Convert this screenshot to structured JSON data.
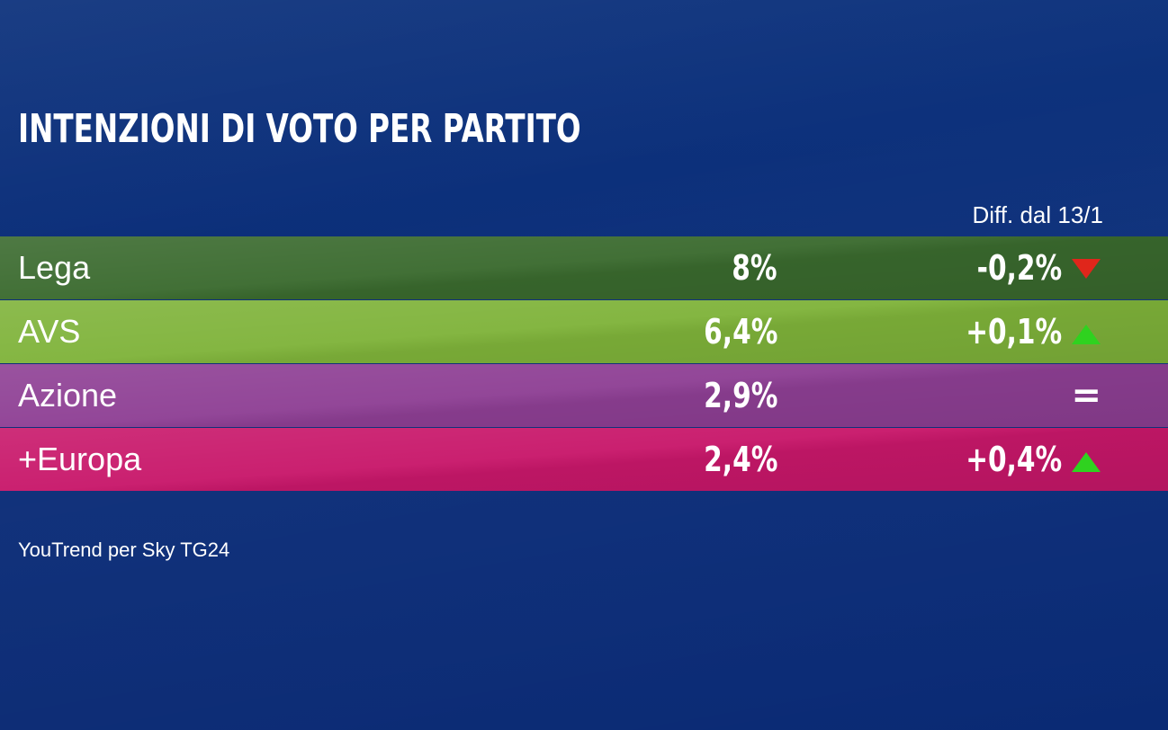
{
  "title": "INTENZIONI DI VOTO PER PARTITO",
  "diff_header": "Diff. dal 13/1",
  "source": "YouTrend per Sky TG24",
  "colors": {
    "background": "#0c2e78",
    "up": "#2fd21f",
    "down": "#e0261b"
  },
  "chart_data": {
    "type": "table",
    "title": "INTENZIONI DI VOTO PER PARTITO",
    "columns": [
      "",
      "",
      "Diff. dal 13/1"
    ],
    "rows": [
      {
        "party": "Lega",
        "value": "8%",
        "diff": "-0,2%",
        "trend": "down",
        "color": "#3a6a2e"
      },
      {
        "party": "AVS",
        "value": "6,4%",
        "diff": "+0,1%",
        "trend": "up",
        "color": "#7fb33a"
      },
      {
        "party": "Azione",
        "value": "2,9%",
        "diff": "=",
        "trend": "equal",
        "color": "#8e3f94"
      },
      {
        "party": "+Europa",
        "value": "2,4%",
        "diff": "+0,4%",
        "trend": "up",
        "color": "#c8176a"
      }
    ]
  }
}
